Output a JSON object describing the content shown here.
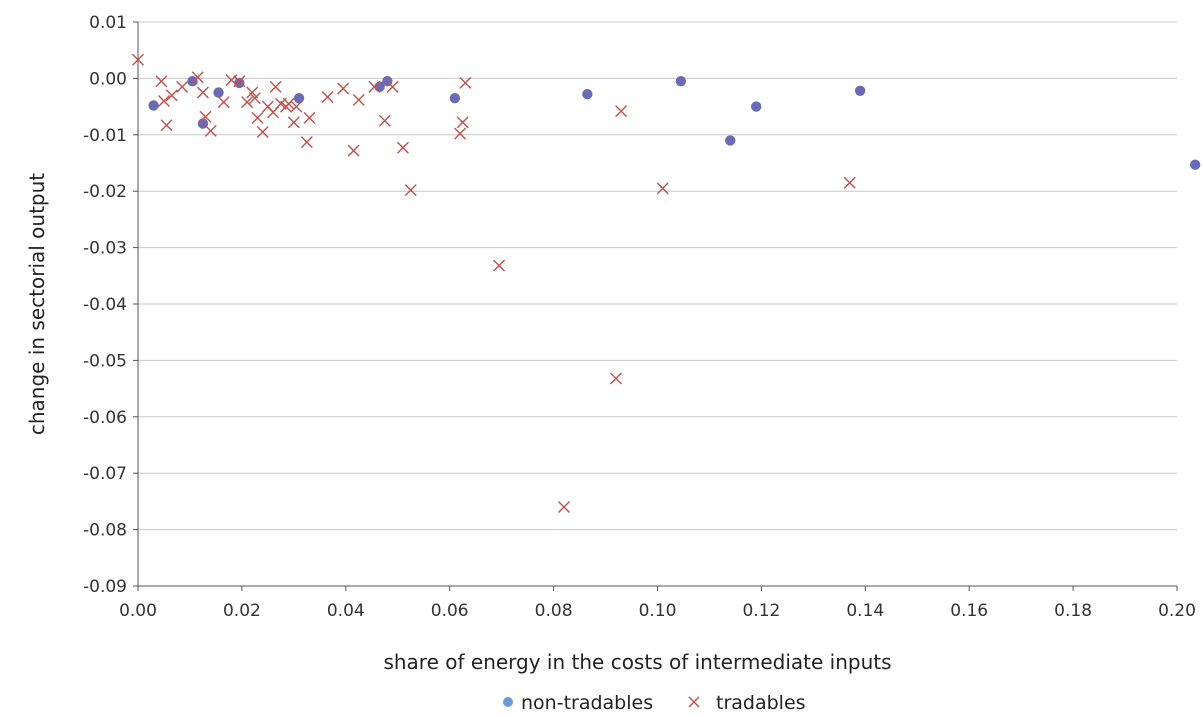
{
  "chart_data": {
    "type": "scatter",
    "title": "",
    "xlabel": "share of energy in the costs of intermediate inputs",
    "ylabel": "change in sectorial output",
    "xlim": [
      0,
      0.2
    ],
    "ylim": [
      -0.09,
      0.01
    ],
    "x_ticks": [
      "0.00",
      "0.02",
      "0.04",
      "0.06",
      "0.08",
      "0.10",
      "0.12",
      "0.14",
      "0.16",
      "0.18",
      "0.20"
    ],
    "y_ticks": [
      "0.01",
      "0.00",
      "-0.01",
      "-0.02",
      "-0.03",
      "-0.04",
      "-0.05",
      "-0.06",
      "-0.07",
      "-0.08",
      "-0.09"
    ],
    "grid": "horizontal",
    "legend_position": "bottom-center",
    "series": [
      {
        "name": "non-tradables",
        "marker": "circle",
        "color": "#6b6bb5",
        "legend_color": "#6b9bd2",
        "points": [
          [
            0.003,
            -0.0048
          ],
          [
            0.0105,
            -0.0005
          ],
          [
            0.0125,
            -0.008
          ],
          [
            0.0155,
            -0.0025
          ],
          [
            0.0195,
            -0.0008
          ],
          [
            0.031,
            -0.0035
          ],
          [
            0.0465,
            -0.0015
          ],
          [
            0.048,
            -0.0005
          ],
          [
            0.061,
            -0.0035
          ],
          [
            0.0865,
            -0.0028
          ],
          [
            0.1045,
            -0.0005
          ],
          [
            0.114,
            -0.011
          ],
          [
            0.119,
            -0.005
          ],
          [
            0.139,
            -0.0022
          ],
          [
            0.2035,
            -0.0153
          ]
        ]
      },
      {
        "name": "tradables",
        "marker": "x",
        "color": "#c0504d",
        "points": [
          [
            0.0,
            0.0033
          ],
          [
            0.0045,
            -0.0005
          ],
          [
            0.005,
            -0.004
          ],
          [
            0.0055,
            -0.0083
          ],
          [
            0.0065,
            -0.003
          ],
          [
            0.0085,
            -0.0015
          ],
          [
            0.0115,
            0.0002
          ],
          [
            0.0125,
            -0.0025
          ],
          [
            0.013,
            -0.0068
          ],
          [
            0.014,
            -0.0093
          ],
          [
            0.0165,
            -0.0042
          ],
          [
            0.018,
            -0.0003
          ],
          [
            0.0195,
            -0.0005
          ],
          [
            0.021,
            -0.0042
          ],
          [
            0.022,
            -0.0025
          ],
          [
            0.0225,
            -0.0035
          ],
          [
            0.023,
            -0.007
          ],
          [
            0.024,
            -0.0095
          ],
          [
            0.025,
            -0.005
          ],
          [
            0.026,
            -0.006
          ],
          [
            0.0265,
            -0.0015
          ],
          [
            0.0275,
            -0.0045
          ],
          [
            0.0285,
            -0.005
          ],
          [
            0.029,
            -0.0045
          ],
          [
            0.03,
            -0.0078
          ],
          [
            0.0305,
            -0.005
          ],
          [
            0.0325,
            -0.0113
          ],
          [
            0.033,
            -0.007
          ],
          [
            0.0365,
            -0.0033
          ],
          [
            0.0395,
            -0.0018
          ],
          [
            0.0415,
            -0.0128
          ],
          [
            0.0425,
            -0.0038
          ],
          [
            0.0455,
            -0.0015
          ],
          [
            0.0475,
            -0.0075
          ],
          [
            0.049,
            -0.0015
          ],
          [
            0.051,
            -0.0123
          ],
          [
            0.0525,
            -0.0198
          ],
          [
            0.062,
            -0.0098
          ],
          [
            0.0625,
            -0.0078
          ],
          [
            0.063,
            -0.0008
          ],
          [
            0.0695,
            -0.0332
          ],
          [
            0.082,
            -0.076
          ],
          [
            0.092,
            -0.0532
          ],
          [
            0.093,
            -0.0058
          ],
          [
            0.101,
            -0.0195
          ],
          [
            0.137,
            -0.0185
          ]
        ]
      }
    ]
  }
}
